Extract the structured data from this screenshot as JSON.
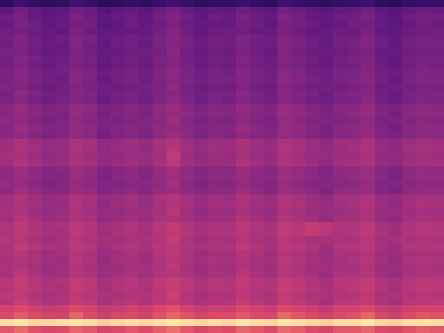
{
  "chart_data": {
    "type": "heatmap",
    "color": "magma",
    "tick_labels": false,
    "zlim": [
      0,
      100
    ],
    "cells": [
      [
        20,
        26,
        22,
        19,
        21,
        27,
        23,
        18,
        20,
        22,
        19,
        24,
        27,
        23,
        19,
        22,
        21,
        25,
        22,
        20,
        27,
        24,
        21,
        19,
        22,
        23,
        26,
        20,
        18,
        22,
        24,
        23
      ],
      [
        36,
        43,
        38,
        35,
        37,
        42,
        40,
        33,
        36,
        39,
        35,
        40,
        44,
        39,
        35,
        38,
        37,
        41,
        38,
        36,
        43,
        40,
        37,
        35,
        38,
        39,
        42,
        36,
        34,
        38,
        40,
        39
      ],
      [
        41,
        44,
        39,
        37,
        38,
        45,
        41,
        36,
        39,
        40,
        37,
        43,
        46,
        42,
        36,
        41,
        39,
        44,
        40,
        38,
        46,
        42,
        39,
        37,
        41,
        41,
        45,
        38,
        35,
        41,
        43,
        42
      ],
      [
        39,
        45,
        41,
        36,
        39,
        43,
        42,
        35,
        37,
        41,
        38,
        41,
        45,
        40,
        38,
        39,
        38,
        43,
        41,
        37,
        44,
        43,
        40,
        36,
        39,
        42,
        43,
        39,
        36,
        39,
        42,
        40
      ],
      [
        42,
        43,
        40,
        38,
        37,
        44,
        40,
        37,
        38,
        39,
        39,
        42,
        47,
        41,
        37,
        40,
        40,
        42,
        39,
        39,
        45,
        41,
        38,
        38,
        40,
        40,
        44,
        37,
        37,
        40,
        41,
        43
      ],
      [
        43,
        47,
        42,
        39,
        41,
        46,
        44,
        38,
        40,
        43,
        40,
        45,
        48,
        43,
        39,
        42,
        41,
        46,
        43,
        40,
        47,
        44,
        41,
        38,
        43,
        43,
        46,
        40,
        38,
        42,
        44,
        43
      ],
      [
        41,
        46,
        43,
        40,
        39,
        47,
        42,
        37,
        41,
        42,
        39,
        44,
        47,
        44,
        40,
        43,
        42,
        45,
        41,
        41,
        48,
        45,
        42,
        39,
        42,
        44,
        47,
        41,
        37,
        43,
        45,
        44
      ],
      [
        44,
        45,
        41,
        38,
        40,
        45,
        43,
        39,
        39,
        41,
        41,
        43,
        49,
        42,
        38,
        41,
        40,
        44,
        42,
        39,
        46,
        43,
        40,
        40,
        41,
        42,
        45,
        39,
        39,
        41,
        43,
        42
      ],
      [
        42,
        48,
        44,
        40,
        41,
        46,
        44,
        38,
        41,
        43,
        40,
        45,
        46,
        43,
        40,
        42,
        42,
        47,
        43,
        40,
        47,
        45,
        42,
        38,
        43,
        44,
        46,
        40,
        37,
        43,
        44,
        44
      ],
      [
        43,
        46,
        42,
        39,
        42,
        45,
        43,
        37,
        40,
        42,
        39,
        44,
        48,
        44,
        39,
        43,
        41,
        45,
        42,
        41,
        46,
        44,
        41,
        39,
        42,
        43,
        47,
        41,
        38,
        42,
        45,
        43
      ],
      [
        45,
        49,
        44,
        41,
        43,
        48,
        46,
        40,
        42,
        45,
        42,
        47,
        50,
        45,
        41,
        44,
        43,
        48,
        45,
        42,
        49,
        46,
        43,
        40,
        45,
        45,
        48,
        42,
        40,
        44,
        46,
        45
      ],
      [
        44,
        48,
        45,
        42,
        41,
        49,
        45,
        39,
        43,
        44,
        41,
        46,
        49,
        46,
        42,
        45,
        44,
        47,
        44,
        43,
        50,
        47,
        44,
        41,
        44,
        46,
        49,
        43,
        39,
        45,
        47,
        46
      ],
      [
        46,
        47,
        43,
        40,
        42,
        47,
        44,
        41,
        41,
        43,
        43,
        45,
        51,
        44,
        40,
        43,
        42,
        46,
        43,
        41,
        48,
        45,
        42,
        42,
        43,
        44,
        47,
        41,
        41,
        43,
        45,
        44
      ],
      [
        44,
        50,
        46,
        42,
        43,
        48,
        46,
        40,
        43,
        45,
        42,
        47,
        48,
        45,
        42,
        44,
        44,
        49,
        45,
        42,
        49,
        47,
        44,
        40,
        45,
        46,
        48,
        42,
        39,
        45,
        46,
        46
      ],
      [
        45,
        48,
        44,
        41,
        44,
        47,
        45,
        39,
        42,
        44,
        41,
        46,
        50,
        46,
        41,
        45,
        43,
        47,
        44,
        43,
        48,
        46,
        43,
        41,
        44,
        45,
        49,
        43,
        40,
        44,
        47,
        45
      ],
      [
        49,
        53,
        48,
        45,
        47,
        52,
        50,
        44,
        46,
        49,
        46,
        51,
        54,
        49,
        45,
        48,
        47,
        52,
        49,
        46,
        53,
        50,
        47,
        44,
        49,
        49,
        52,
        46,
        44,
        48,
        50,
        49
      ],
      [
        48,
        52,
        49,
        46,
        45,
        53,
        49,
        43,
        47,
        48,
        45,
        50,
        53,
        50,
        46,
        49,
        48,
        51,
        48,
        47,
        54,
        51,
        48,
        45,
        48,
        50,
        53,
        47,
        43,
        49,
        51,
        50
      ],
      [
        50,
        51,
        47,
        44,
        46,
        51,
        48,
        45,
        45,
        47,
        47,
        49,
        55,
        48,
        44,
        47,
        46,
        50,
        47,
        45,
        52,
        49,
        46,
        46,
        47,
        48,
        51,
        45,
        45,
        47,
        49,
        48
      ],
      [
        48,
        54,
        50,
        46,
        47,
        52,
        50,
        44,
        47,
        49,
        46,
        51,
        52,
        49,
        46,
        48,
        48,
        53,
        49,
        46,
        53,
        51,
        48,
        44,
        49,
        50,
        52,
        46,
        43,
        49,
        50,
        50
      ],
      [
        49,
        52,
        48,
        45,
        48,
        51,
        49,
        43,
        46,
        48,
        45,
        50,
        54,
        50,
        45,
        49,
        47,
        51,
        48,
        47,
        52,
        50,
        47,
        45,
        48,
        49,
        53,
        47,
        44,
        48,
        51,
        49
      ],
      [
        56,
        60,
        55,
        52,
        54,
        59,
        57,
        51,
        53,
        56,
        53,
        58,
        61,
        56,
        52,
        55,
        54,
        59,
        56,
        53,
        60,
        57,
        54,
        51,
        56,
        56,
        59,
        53,
        51,
        55,
        57,
        56
      ],
      [
        55,
        59,
        56,
        53,
        52,
        60,
        56,
        50,
        54,
        55,
        52,
        57,
        63,
        57,
        53,
        56,
        55,
        58,
        55,
        54,
        61,
        58,
        55,
        52,
        55,
        57,
        60,
        54,
        50,
        56,
        58,
        57
      ],
      [
        57,
        58,
        54,
        51,
        53,
        58,
        55,
        52,
        52,
        54,
        54,
        56,
        66,
        55,
        51,
        54,
        53,
        57,
        54,
        52,
        59,
        56,
        53,
        53,
        54,
        55,
        58,
        52,
        52,
        54,
        56,
        55
      ],
      [
        55,
        61,
        57,
        53,
        54,
        59,
        57,
        51,
        54,
        56,
        53,
        58,
        64,
        56,
        53,
        55,
        55,
        60,
        56,
        53,
        60,
        58,
        55,
        51,
        56,
        57,
        59,
        53,
        50,
        56,
        57,
        57
      ],
      [
        51,
        55,
        50,
        47,
        49,
        54,
        52,
        46,
        48,
        51,
        48,
        53,
        56,
        51,
        47,
        50,
        49,
        54,
        51,
        48,
        55,
        52,
        49,
        46,
        51,
        51,
        54,
        48,
        46,
        50,
        52,
        51
      ],
      [
        50,
        54,
        51,
        48,
        47,
        55,
        51,
        45,
        49,
        50,
        47,
        52,
        55,
        52,
        48,
        51,
        50,
        53,
        50,
        49,
        56,
        53,
        50,
        47,
        50,
        52,
        55,
        49,
        45,
        51,
        53,
        52
      ],
      [
        52,
        53,
        49,
        46,
        48,
        53,
        50,
        47,
        47,
        49,
        49,
        51,
        57,
        50,
        46,
        49,
        48,
        52,
        49,
        47,
        54,
        51,
        48,
        48,
        49,
        50,
        53,
        47,
        47,
        49,
        51,
        50
      ],
      [
        50,
        56,
        52,
        48,
        49,
        54,
        52,
        46,
        49,
        51,
        48,
        53,
        54,
        51,
        48,
        50,
        50,
        55,
        51,
        48,
        55,
        53,
        50,
        46,
        51,
        52,
        54,
        48,
        45,
        51,
        52,
        52
      ],
      [
        57,
        61,
        56,
        53,
        55,
        60,
        58,
        52,
        54,
        57,
        54,
        59,
        62,
        57,
        53,
        56,
        55,
        60,
        57,
        54,
        61,
        58,
        55,
        52,
        57,
        57,
        60,
        54,
        52,
        56,
        58,
        57
      ],
      [
        56,
        60,
        57,
        54,
        53,
        61,
        57,
        51,
        55,
        56,
        53,
        58,
        61,
        58,
        54,
        57,
        56,
        59,
        56,
        55,
        62,
        59,
        56,
        53,
        56,
        58,
        61,
        55,
        51,
        57,
        59,
        58
      ],
      [
        58,
        59,
        55,
        52,
        54,
        59,
        56,
        53,
        53,
        55,
        55,
        57,
        63,
        56,
        52,
        55,
        54,
        58,
        55,
        53,
        60,
        57,
        54,
        54,
        55,
        56,
        59,
        53,
        53,
        55,
        57,
        56
      ],
      [
        56,
        62,
        58,
        54,
        55,
        60,
        58,
        52,
        55,
        57,
        54,
        59,
        60,
        57,
        54,
        56,
        56,
        61,
        57,
        54,
        61,
        59,
        56,
        52,
        57,
        58,
        60,
        54,
        51,
        57,
        58,
        58
      ],
      [
        61,
        65,
        60,
        57,
        59,
        64,
        62,
        56,
        58,
        61,
        58,
        63,
        66,
        61,
        57,
        60,
        59,
        64,
        61,
        58,
        65,
        62,
        67,
        64,
        61,
        61,
        64,
        58,
        56,
        60,
        62,
        61
      ],
      [
        60,
        64,
        61,
        58,
        57,
        65,
        61,
        55,
        59,
        60,
        57,
        62,
        65,
        62,
        58,
        61,
        60,
        63,
        60,
        59,
        66,
        63,
        66,
        63,
        60,
        62,
        65,
        59,
        55,
        61,
        63,
        62
      ],
      [
        62,
        63,
        59,
        56,
        58,
        63,
        60,
        57,
        57,
        59,
        59,
        61,
        67,
        60,
        56,
        59,
        58,
        62,
        59,
        57,
        64,
        61,
        58,
        58,
        59,
        60,
        63,
        57,
        57,
        59,
        61,
        60
      ],
      [
        60,
        66,
        62,
        58,
        59,
        64,
        62,
        56,
        59,
        61,
        58,
        63,
        64,
        61,
        58,
        60,
        60,
        65,
        61,
        58,
        65,
        63,
        60,
        56,
        61,
        62,
        64,
        58,
        55,
        61,
        62,
        62
      ],
      [
        59,
        63,
        58,
        55,
        57,
        62,
        60,
        54,
        56,
        59,
        56,
        61,
        64,
        59,
        55,
        58,
        57,
        62,
        59,
        56,
        63,
        60,
        57,
        54,
        59,
        59,
        62,
        56,
        54,
        58,
        60,
        59
      ],
      [
        58,
        62,
        59,
        56,
        55,
        63,
        59,
        53,
        57,
        58,
        55,
        60,
        63,
        60,
        56,
        59,
        58,
        61,
        58,
        57,
        64,
        61,
        58,
        55,
        58,
        60,
        63,
        57,
        53,
        59,
        61,
        60
      ],
      [
        60,
        61,
        57,
        54,
        56,
        61,
        58,
        55,
        55,
        57,
        57,
        59,
        65,
        58,
        54,
        57,
        56,
        60,
        57,
        55,
        62,
        59,
        56,
        56,
        57,
        58,
        61,
        55,
        55,
        57,
        59,
        58
      ],
      [
        58,
        64,
        60,
        56,
        57,
        62,
        60,
        54,
        57,
        59,
        56,
        61,
        62,
        59,
        56,
        58,
        58,
        63,
        59,
        56,
        63,
        61,
        58,
        54,
        59,
        60,
        62,
        56,
        53,
        59,
        60,
        60
      ],
      [
        63,
        67,
        62,
        59,
        61,
        66,
        64,
        58,
        60,
        63,
        60,
        65,
        68,
        63,
        59,
        62,
        61,
        66,
        63,
        60,
        67,
        64,
        61,
        58,
        63,
        63,
        66,
        60,
        58,
        62,
        64,
        63
      ],
      [
        62,
        66,
        63,
        60,
        59,
        67,
        63,
        57,
        61,
        62,
        59,
        64,
        67,
        64,
        60,
        63,
        62,
        65,
        62,
        61,
        68,
        65,
        62,
        59,
        62,
        64,
        67,
        61,
        57,
        63,
        65,
        64
      ],
      [
        64,
        65,
        61,
        58,
        60,
        65,
        62,
        59,
        59,
        61,
        61,
        63,
        69,
        62,
        58,
        61,
        60,
        64,
        61,
        59,
        66,
        63,
        60,
        60,
        61,
        62,
        65,
        59,
        59,
        61,
        63,
        62
      ],
      [
        62,
        68,
        64,
        60,
        61,
        66,
        64,
        58,
        61,
        63,
        60,
        65,
        66,
        63,
        60,
        62,
        62,
        67,
        63,
        60,
        67,
        65,
        62,
        58,
        63,
        64,
        66,
        60,
        57,
        63,
        64,
        64
      ],
      [
        71,
        75,
        70,
        67,
        69,
        74,
        72,
        66,
        68,
        71,
        68,
        73,
        76,
        71,
        67,
        70,
        69,
        74,
        71,
        68,
        75,
        72,
        69,
        66,
        71,
        71,
        74,
        68,
        66,
        70,
        72,
        71
      ],
      [
        74,
        78,
        75,
        72,
        71,
        79,
        75,
        69,
        73,
        74,
        71,
        76,
        79,
        76,
        72,
        75,
        74,
        77,
        74,
        73,
        80,
        77,
        74,
        71,
        74,
        76,
        79,
        73,
        69,
        75,
        77,
        76
      ],
      [
        96,
        97,
        95,
        95,
        96,
        97,
        96,
        94,
        95,
        96,
        95,
        96,
        97,
        96,
        95,
        96,
        95,
        97,
        96,
        95,
        97,
        96,
        95,
        94,
        96,
        96,
        97,
        95,
        94,
        96,
        96,
        96
      ],
      [
        77,
        80,
        76,
        73,
        75,
        79,
        77,
        72,
        74,
        77,
        74,
        78,
        81,
        77,
        73,
        76,
        75,
        79,
        77,
        74,
        80,
        78,
        75,
        72,
        77,
        77,
        79,
        74,
        72,
        76,
        78,
        77
      ]
    ]
  }
}
